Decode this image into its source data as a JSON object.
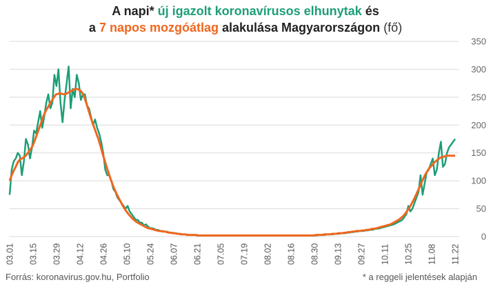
{
  "title": {
    "line1_prefix": "A napi* ",
    "line1_highlight": "új igazolt koronavírusos elhunytak",
    "line1_suffix": " és",
    "line2_prefix": "a ",
    "line2_highlight": "7 napos mozgóátlag",
    "line2_suffix": " alakulása Magyarországon ",
    "line2_unit": "(fő)"
  },
  "source": "Forrás: koronavirus.gov.hu, Portfolio",
  "note": "* a reggeli jelentések alapján",
  "colors": {
    "daily": "#1e9e78",
    "average": "#f0661e",
    "grid": "#d9d9d9"
  },
  "chart_data": {
    "type": "line",
    "y_ticks": [
      "0",
      "50",
      "100",
      "150",
      "200",
      "250",
      "300",
      "350"
    ],
    "ylim": [
      0,
      350
    ],
    "x_ticks": [
      "03.01",
      "03.15",
      "03.29",
      "04.12",
      "04.26",
      "05.10",
      "05.24",
      "06.07",
      "06.21",
      "07.05",
      "07.19",
      "08.02",
      "08.16",
      "08.30",
      "09.13",
      "09.27",
      "10.11",
      "10.25",
      "11.08",
      "11.22"
    ],
    "x_start": "03.01",
    "x_end": "11.22",
    "grid": true,
    "series": [
      {
        "key": "daily",
        "values": [
          75,
          120,
          135,
          140,
          150,
          145,
          110,
          135,
          175,
          165,
          140,
          160,
          190,
          185,
          205,
          225,
          195,
          215,
          240,
          255,
          230,
          240,
          290,
          270,
          300,
          240,
          205,
          245,
          275,
          305,
          230,
          265,
          250,
          290,
          275,
          245,
          255,
          255,
          235,
          230,
          215,
          200,
          210,
          195,
          185,
          170,
          150,
          120,
          110,
          110,
          100,
          85,
          80,
          70,
          65,
          60,
          55,
          50,
          55,
          45,
          40,
          35,
          30,
          30,
          25,
          25,
          20,
          22,
          18,
          15,
          15,
          14,
          12,
          12,
          10,
          10,
          9,
          9,
          8,
          7,
          7,
          6,
          6,
          5,
          5,
          4,
          4,
          4,
          3,
          3,
          3,
          3,
          3,
          2,
          2,
          2,
          2,
          2,
          2,
          2,
          2,
          2,
          2,
          2,
          2,
          2,
          2,
          2,
          2,
          2,
          2,
          2,
          2,
          2,
          2,
          2,
          2,
          2,
          2,
          2,
          2,
          2,
          2,
          2,
          2,
          2,
          2,
          2,
          2,
          2,
          2,
          2,
          2,
          2,
          2,
          2,
          2,
          2,
          2,
          2,
          2,
          2,
          2,
          2,
          2,
          2,
          2,
          2,
          2,
          2,
          2,
          2,
          3,
          3,
          3,
          3,
          4,
          4,
          4,
          4,
          5,
          5,
          5,
          6,
          6,
          6,
          7,
          7,
          8,
          8,
          9,
          9,
          10,
          10,
          10,
          11,
          11,
          12,
          12,
          13,
          14,
          14,
          15,
          16,
          17,
          18,
          19,
          20,
          21,
          22,
          24,
          26,
          28,
          30,
          35,
          40,
          55,
          45,
          50,
          60,
          70,
          80,
          110,
          75,
          95,
          115,
          120,
          130,
          140,
          110,
          120,
          150,
          170,
          125,
          130,
          150,
          160,
          165,
          170,
          175
        ]
      },
      {
        "key": "average",
        "values": [
          100,
          110,
          118,
          125,
          133,
          138,
          140,
          142,
          145,
          150,
          155,
          160,
          168,
          178,
          188,
          198,
          208,
          218,
          226,
          232,
          238,
          244,
          250,
          255,
          256,
          257,
          256,
          255,
          256,
          258,
          260,
          262,
          264,
          265,
          264,
          262,
          258,
          250,
          240,
          228,
          216,
          205,
          195,
          185,
          175,
          163,
          150,
          138,
          126,
          115,
          104,
          94,
          85,
          77,
          70,
          63,
          56,
          50,
          45,
          40,
          36,
          32,
          29,
          26,
          24,
          22,
          20,
          18,
          16,
          15,
          14,
          13,
          12,
          11,
          10,
          10,
          9,
          9,
          8,
          7,
          7,
          6,
          6,
          5,
          5,
          4,
          4,
          4,
          3,
          3,
          3,
          3,
          3,
          2,
          2,
          2,
          2,
          2,
          2,
          2,
          2,
          2,
          2,
          2,
          2,
          2,
          2,
          2,
          2,
          2,
          2,
          2,
          2,
          2,
          2,
          2,
          2,
          2,
          2,
          2,
          2,
          2,
          2,
          2,
          2,
          2,
          2,
          2,
          2,
          2,
          2,
          2,
          2,
          2,
          2,
          2,
          2,
          2,
          2,
          2,
          2,
          2,
          2,
          2,
          2,
          2,
          2,
          2,
          2,
          2,
          2,
          2,
          3,
          3,
          3,
          3,
          4,
          4,
          4,
          4,
          5,
          5,
          5,
          6,
          6,
          6,
          7,
          7,
          8,
          8,
          9,
          9,
          10,
          10,
          10,
          11,
          11,
          12,
          12,
          13,
          14,
          14,
          15,
          16,
          17,
          18,
          19,
          20,
          21,
          22,
          24,
          26,
          28,
          30,
          33,
          36,
          40,
          45,
          50,
          56,
          63,
          70,
          78,
          86,
          94,
          102,
          110,
          116,
          122,
          126,
          130,
          134,
          137,
          140,
          142,
          143,
          144,
          145,
          145,
          145,
          145,
          145
        ]
      }
    ]
  }
}
